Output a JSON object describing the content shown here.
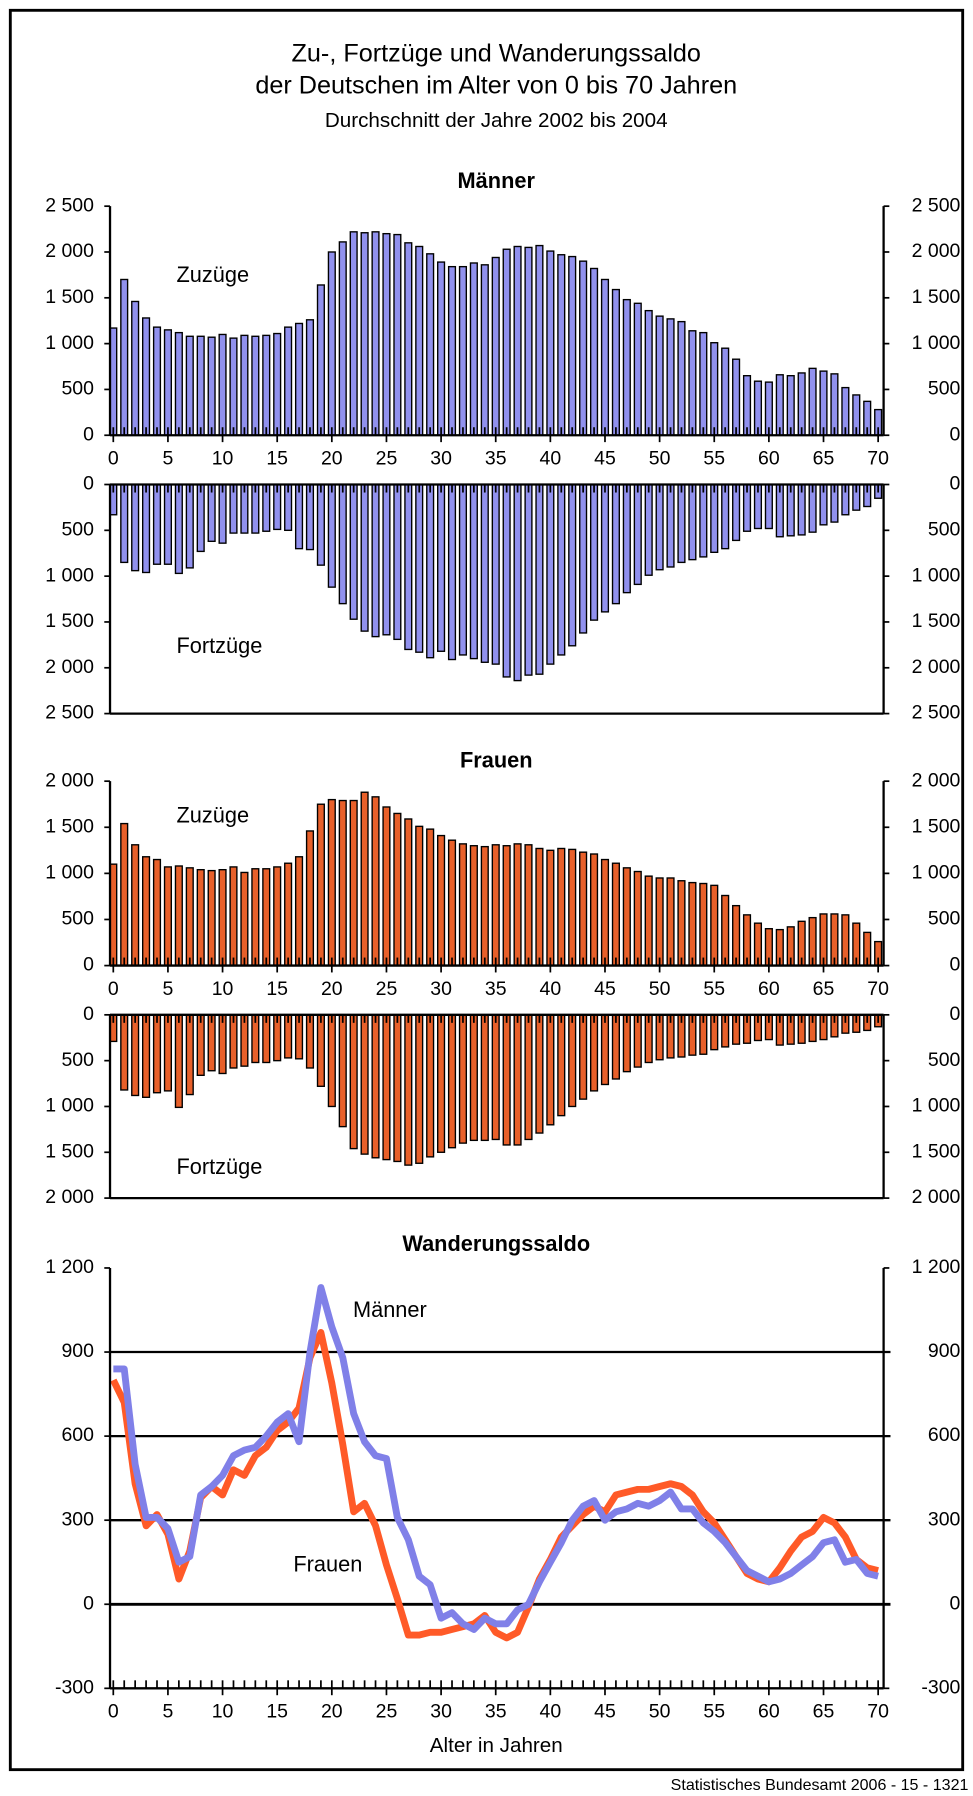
{
  "title_lines": [
    "Zu-, Fortzüge und Wanderungssaldo",
    "der Deutschen im Alter von 0 bis 70 Jahren"
  ],
  "subtitle": "Durchschnitt der Jahre 2002 bis 2004",
  "source": "Statistisches Bundesamt 2006 - 15 - 1321",
  "chart_data": [
    {
      "type": "bar",
      "title": "Männer",
      "annotation": "Zuzüge",
      "color": "#9191ee",
      "x": [
        0,
        1,
        2,
        3,
        4,
        5,
        6,
        7,
        8,
        9,
        10,
        11,
        12,
        13,
        14,
        15,
        16,
        17,
        18,
        19,
        20,
        21,
        22,
        23,
        24,
        25,
        26,
        27,
        28,
        29,
        30,
        31,
        32,
        33,
        34,
        35,
        36,
        37,
        38,
        39,
        40,
        41,
        42,
        43,
        44,
        45,
        46,
        47,
        48,
        49,
        50,
        51,
        52,
        53,
        54,
        55,
        56,
        57,
        58,
        59,
        60,
        61,
        62,
        63,
        64,
        65,
        66,
        67,
        68,
        69,
        70
      ],
      "values": [
        1170,
        1700,
        1460,
        1280,
        1180,
        1150,
        1120,
        1080,
        1080,
        1070,
        1100,
        1060,
        1090,
        1080,
        1090,
        1110,
        1180,
        1220,
        1260,
        1640,
        2000,
        2110,
        2220,
        2210,
        2220,
        2200,
        2190,
        2100,
        2060,
        1980,
        1890,
        1840,
        1840,
        1880,
        1860,
        1940,
        2030,
        2060,
        2050,
        2070,
        2010,
        1970,
        1950,
        1900,
        1820,
        1700,
        1590,
        1480,
        1440,
        1360,
        1300,
        1270,
        1240,
        1140,
        1120,
        1010,
        950,
        830,
        650,
        590,
        580,
        660,
        650,
        680,
        730,
        700,
        670,
        520,
        440,
        370,
        280
      ],
      "xlim": [
        -0.3,
        70.5
      ],
      "xticks": [
        0,
        5,
        10,
        15,
        20,
        25,
        30,
        35,
        40,
        45,
        50,
        55,
        60,
        65,
        70
      ],
      "ylim": [
        0,
        2500
      ],
      "yticks": [
        0,
        500,
        {
          "value": 1000,
          "label": "1 000"
        },
        {
          "value": 1500,
          "label": "1 500"
        },
        {
          "value": 2000,
          "label": "2 000"
        },
        {
          "value": 2500,
          "label": "2 500"
        }
      ]
    },
    {
      "type": "bar",
      "annotation": "Fortzüge",
      "color": "#9191ee",
      "inverted_y": true,
      "x": [
        0,
        1,
        2,
        3,
        4,
        5,
        6,
        7,
        8,
        9,
        10,
        11,
        12,
        13,
        14,
        15,
        16,
        17,
        18,
        19,
        20,
        21,
        22,
        23,
        24,
        25,
        26,
        27,
        28,
        29,
        30,
        31,
        32,
        33,
        34,
        35,
        36,
        37,
        38,
        39,
        40,
        41,
        42,
        43,
        44,
        45,
        46,
        47,
        48,
        49,
        50,
        51,
        52,
        53,
        54,
        55,
        56,
        57,
        58,
        59,
        60,
        61,
        62,
        63,
        64,
        65,
        66,
        67,
        68,
        69,
        70
      ],
      "values": [
        330,
        850,
        940,
        960,
        870,
        870,
        970,
        910,
        730,
        620,
        640,
        530,
        530,
        530,
        510,
        490,
        500,
        700,
        710,
        880,
        1120,
        1300,
        1470,
        1600,
        1660,
        1640,
        1690,
        1800,
        1830,
        1890,
        1820,
        1910,
        1860,
        1900,
        1940,
        1960,
        2100,
        2140,
        2080,
        2070,
        1960,
        1860,
        1760,
        1620,
        1480,
        1390,
        1300,
        1180,
        1090,
        990,
        930,
        900,
        850,
        820,
        790,
        740,
        700,
        610,
        510,
        480,
        480,
        570,
        560,
        550,
        520,
        440,
        410,
        330,
        280,
        240,
        150
      ],
      "xlim": [
        -0.3,
        70.5
      ],
      "ylim": [
        0,
        2500
      ],
      "yticks": [
        0,
        500,
        {
          "value": 1000,
          "label": "1 000"
        },
        {
          "value": 1500,
          "label": "1 500"
        },
        {
          "value": 2000,
          "label": "2 000"
        },
        {
          "value": 2500,
          "label": "2 500"
        }
      ]
    },
    {
      "type": "bar",
      "title": "Frauen",
      "annotation": "Zuzüge",
      "color": "#e8602a",
      "x": [
        0,
        1,
        2,
        3,
        4,
        5,
        6,
        7,
        8,
        9,
        10,
        11,
        12,
        13,
        14,
        15,
        16,
        17,
        18,
        19,
        20,
        21,
        22,
        23,
        24,
        25,
        26,
        27,
        28,
        29,
        30,
        31,
        32,
        33,
        34,
        35,
        36,
        37,
        38,
        39,
        40,
        41,
        42,
        43,
        44,
        45,
        46,
        47,
        48,
        49,
        50,
        51,
        52,
        53,
        54,
        55,
        56,
        57,
        58,
        59,
        60,
        61,
        62,
        63,
        64,
        65,
        66,
        67,
        68,
        69,
        70
      ],
      "values": [
        1100,
        1540,
        1310,
        1180,
        1150,
        1070,
        1080,
        1060,
        1040,
        1030,
        1040,
        1070,
        1010,
        1050,
        1050,
        1070,
        1110,
        1180,
        1460,
        1750,
        1800,
        1790,
        1790,
        1880,
        1830,
        1720,
        1650,
        1590,
        1510,
        1480,
        1410,
        1360,
        1320,
        1300,
        1290,
        1310,
        1300,
        1320,
        1310,
        1270,
        1250,
        1270,
        1260,
        1230,
        1210,
        1150,
        1110,
        1060,
        1020,
        970,
        950,
        950,
        920,
        900,
        890,
        870,
        760,
        650,
        550,
        460,
        400,
        390,
        420,
        480,
        520,
        560,
        560,
        550,
        460,
        360,
        260
      ],
      "xlim": [
        -0.3,
        70.5
      ],
      "xticks": [
        0,
        5,
        10,
        15,
        20,
        25,
        30,
        35,
        40,
        45,
        50,
        55,
        60,
        65,
        70
      ],
      "ylim": [
        0,
        2000
      ],
      "yticks": [
        0,
        500,
        {
          "value": 1000,
          "label": "1 000"
        },
        {
          "value": 1500,
          "label": "1 500"
        },
        {
          "value": 2000,
          "label": "2 000"
        }
      ]
    },
    {
      "type": "bar",
      "annotation": "Fortzüge",
      "color": "#e8602a",
      "inverted_y": true,
      "x": [
        0,
        1,
        2,
        3,
        4,
        5,
        6,
        7,
        8,
        9,
        10,
        11,
        12,
        13,
        14,
        15,
        16,
        17,
        18,
        19,
        20,
        21,
        22,
        23,
        24,
        25,
        26,
        27,
        28,
        29,
        30,
        31,
        32,
        33,
        34,
        35,
        36,
        37,
        38,
        39,
        40,
        41,
        42,
        43,
        44,
        45,
        46,
        47,
        48,
        49,
        50,
        51,
        52,
        53,
        54,
        55,
        56,
        57,
        58,
        59,
        60,
        61,
        62,
        63,
        64,
        65,
        66,
        67,
        68,
        69,
        70
      ],
      "values": [
        290,
        820,
        880,
        900,
        850,
        830,
        1010,
        870,
        660,
        610,
        640,
        580,
        560,
        520,
        520,
        500,
        470,
        480,
        580,
        780,
        1000,
        1220,
        1460,
        1520,
        1560,
        1580,
        1600,
        1640,
        1620,
        1550,
        1500,
        1450,
        1400,
        1370,
        1370,
        1360,
        1420,
        1420,
        1360,
        1290,
        1200,
        1100,
        1000,
        920,
        830,
        760,
        700,
        620,
        570,
        520,
        490,
        470,
        460,
        440,
        430,
        380,
        350,
        320,
        310,
        280,
        270,
        330,
        320,
        310,
        290,
        270,
        240,
        200,
        190,
        170,
        130
      ],
      "xlim": [
        -0.3,
        70.5
      ],
      "ylim": [
        0,
        2000
      ],
      "yticks": [
        0,
        500,
        {
          "value": 1000,
          "label": "1 000"
        },
        {
          "value": 1500,
          "label": "1 500"
        },
        {
          "value": 2000,
          "label": "2 000"
        }
      ]
    },
    {
      "type": "line",
      "title": "Wanderungssaldo",
      "x_label": "Alter in Jahren",
      "grid": true,
      "x": [
        0,
        1,
        2,
        3,
        4,
        5,
        6,
        7,
        8,
        9,
        10,
        11,
        12,
        13,
        14,
        15,
        16,
        17,
        18,
        19,
        20,
        21,
        22,
        23,
        24,
        25,
        26,
        27,
        28,
        29,
        30,
        31,
        32,
        33,
        34,
        35,
        36,
        37,
        38,
        39,
        40,
        41,
        42,
        43,
        44,
        45,
        46,
        47,
        48,
        49,
        50,
        51,
        52,
        53,
        54,
        55,
        56,
        57,
        58,
        59,
        60,
        61,
        62,
        63,
        64,
        65,
        66,
        67,
        68,
        69,
        70
      ],
      "series": [
        {
          "name": "Männer",
          "color": "#8080e8",
          "values": [
            840,
            840,
            500,
            310,
            310,
            270,
            150,
            170,
            390,
            420,
            460,
            530,
            550,
            560,
            600,
            650,
            680,
            580,
            900,
            1130,
            990,
            880,
            680,
            580,
            530,
            520,
            310,
            230,
            100,
            70,
            -50,
            -30,
            -70,
            -90,
            -50,
            -70,
            -70,
            -20,
            0,
            80,
            150,
            220,
            300,
            350,
            370,
            300,
            330,
            340,
            360,
            350,
            370,
            400,
            340,
            340,
            290,
            260,
            220,
            170,
            120,
            100,
            80,
            90,
            110,
            140,
            170,
            220,
            230,
            150,
            160,
            110,
            100
          ]
        },
        {
          "name": "Frauen",
          "color": "#ff5a28",
          "values": [
            800,
            720,
            430,
            280,
            320,
            250,
            90,
            190,
            380,
            420,
            390,
            480,
            460,
            530,
            560,
            620,
            650,
            700,
            880,
            970,
            790,
            570,
            330,
            360,
            280,
            140,
            20,
            -110,
            -110,
            -100,
            -100,
            -90,
            -80,
            -70,
            -40,
            -100,
            -120,
            -100,
            -10,
            90,
            160,
            240,
            280,
            320,
            350,
            330,
            390,
            400,
            410,
            410,
            420,
            430,
            420,
            390,
            330,
            290,
            230,
            170,
            110,
            90,
            80,
            130,
            190,
            240,
            260,
            310,
            290,
            240,
            160,
            130,
            120
          ]
        }
      ],
      "xlim": [
        -0.3,
        70.5
      ],
      "xticks": [
        0,
        5,
        10,
        15,
        20,
        25,
        30,
        35,
        40,
        45,
        50,
        55,
        60,
        65,
        70
      ],
      "ylim": [
        -300,
        1200
      ],
      "yticks": [
        -300,
        0,
        300,
        600,
        900,
        {
          "value": 1200,
          "label": "1 200"
        }
      ]
    }
  ]
}
